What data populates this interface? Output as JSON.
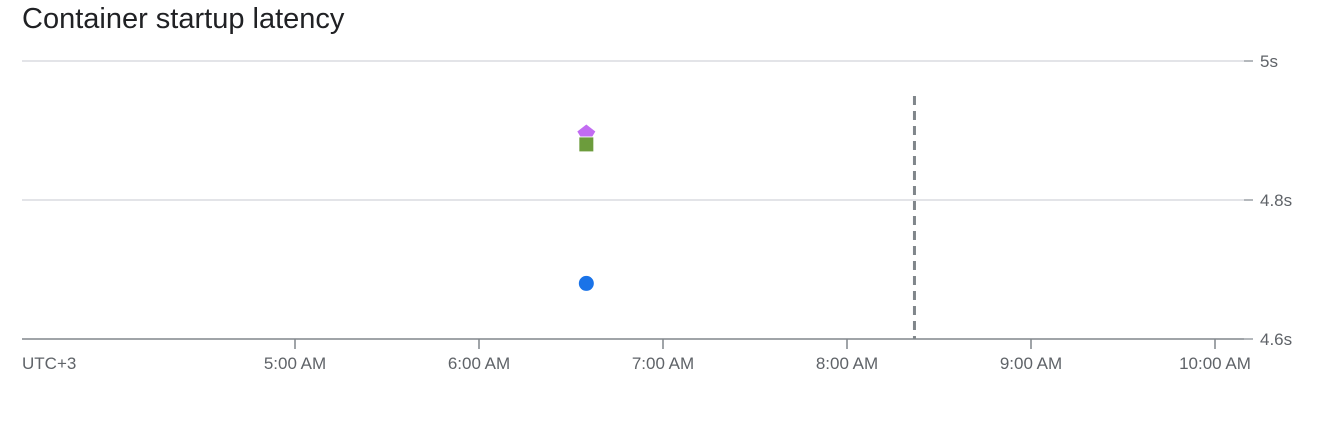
{
  "chart_data": {
    "type": "scatter",
    "title": "Container startup latency",
    "xlabel": "",
    "ylabel": "",
    "timezone_label": "UTC+3",
    "x_ticks": [
      "5:00 AM",
      "6:00 AM",
      "7:00 AM",
      "8:00 AM",
      "9:00 AM",
      "10:00 AM"
    ],
    "x_range": [
      "3:37 AM",
      "10:10 AM"
    ],
    "y_ticks": [
      "5s",
      "4.8s",
      "4.6s"
    ],
    "ylim": [
      4.6,
      5.0
    ],
    "grid": true,
    "y_axis_side": "right",
    "series": [
      {
        "marker": "circle",
        "color": "#1a73e8",
        "points": [
          {
            "x": "6:35 AM",
            "y": 4.68
          }
        ]
      },
      {
        "marker": "square",
        "color": "#6c9c3c",
        "points": [
          {
            "x": "6:35 AM",
            "y": 4.88
          }
        ]
      },
      {
        "marker": "diamond",
        "color": "#c26cf2",
        "points": [
          {
            "x": "6:35 AM",
            "y": 4.9
          }
        ]
      }
    ],
    "annotations": [
      {
        "type": "vertical-dashed-line",
        "x": "8:22 AM",
        "color": "#80868b"
      }
    ]
  }
}
